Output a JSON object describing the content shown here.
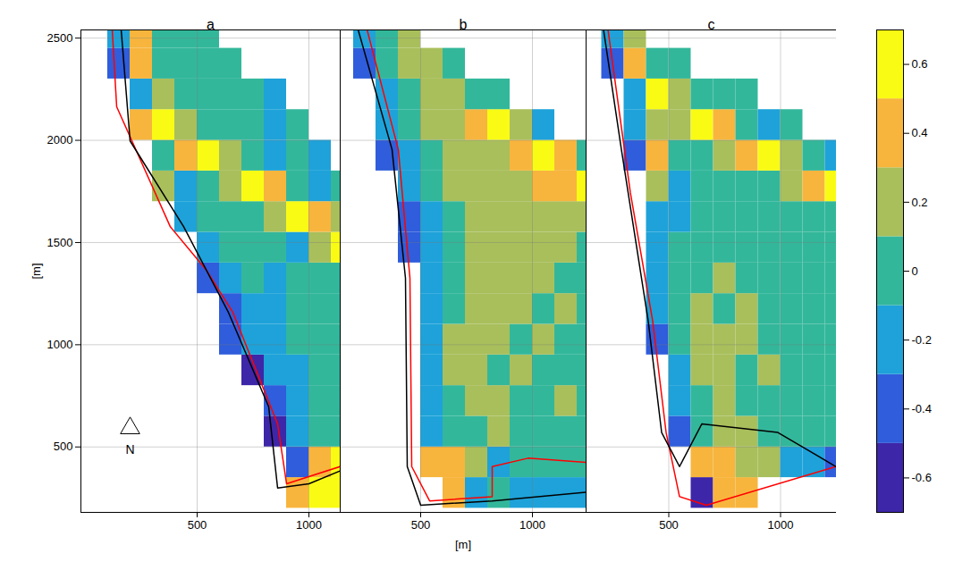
{
  "chart_data": [
    {
      "type": "heatmap",
      "title": "a",
      "ylabel": "[m]",
      "xlim": [
        -20,
        1140
      ],
      "xticks": [
        500,
        1000
      ],
      "ylim": [
        180,
        2540
      ],
      "yticks": [
        500,
        1000,
        1500,
        2000,
        2500
      ],
      "grid": true,
      "tick_labels": true,
      "cells": {
        "x0": 0,
        "dx": 100,
        "y0": 200,
        "dy": 150,
        "values": [
          [
            null,
            null,
            null,
            null,
            null,
            null,
            null,
            null,
            null,
            0.4,
            0.6,
            0.6
          ],
          [
            null,
            null,
            null,
            null,
            null,
            null,
            null,
            null,
            null,
            -0.4,
            0.4,
            0.6
          ],
          [
            null,
            null,
            null,
            null,
            null,
            null,
            null,
            null,
            -0.6,
            -0.2,
            0,
            0
          ],
          [
            null,
            null,
            null,
            null,
            null,
            null,
            null,
            null,
            -0.4,
            -0.2,
            0,
            0
          ],
          [
            null,
            null,
            null,
            null,
            null,
            null,
            null,
            -0.6,
            -0.2,
            -0.2,
            0,
            0
          ],
          [
            null,
            null,
            null,
            null,
            null,
            null,
            -0.4,
            -0.2,
            -0.2,
            0,
            0,
            0
          ],
          [
            null,
            null,
            null,
            null,
            null,
            null,
            -0.4,
            -0.2,
            -0.2,
            0,
            0,
            0
          ],
          [
            null,
            null,
            null,
            null,
            null,
            -0.4,
            -0.2,
            0,
            -0.2,
            0,
            0,
            0
          ],
          [
            null,
            null,
            null,
            null,
            null,
            -0.2,
            0,
            0,
            0,
            -0.2,
            0.2,
            0.6
          ],
          [
            null,
            null,
            null,
            null,
            -0.2,
            0,
            0,
            0,
            0.2,
            0.6,
            0.4,
            0.2
          ],
          [
            null,
            null,
            null,
            0.2,
            -0.2,
            0,
            0.2,
            0.6,
            0.4,
            0,
            -0.2,
            0
          ],
          [
            null,
            null,
            null,
            0,
            0.4,
            0.6,
            0.2,
            0,
            -0.2,
            0,
            -0.2,
            null
          ],
          [
            null,
            null,
            0.4,
            0.6,
            0.2,
            0,
            0,
            0,
            -0.2,
            0,
            null,
            null
          ],
          [
            null,
            null,
            -0.2,
            0.2,
            0,
            0,
            0,
            0,
            -0.2,
            null,
            null,
            null
          ],
          [
            null,
            -0.4,
            0.4,
            0,
            0,
            0,
            0,
            null,
            null,
            null,
            null,
            null
          ],
          [
            null,
            -0.2,
            0.4,
            0,
            0,
            0,
            null,
            null,
            null,
            null,
            null,
            null
          ]
        ]
      },
      "lines": [
        {
          "color": "red",
          "x": [
            120,
            140,
            380,
            540,
            660,
            860,
            900,
            1140
          ],
          "y": [
            2542,
            2164,
            1577,
            1367,
            1158,
            613,
            320,
            404
          ]
        },
        {
          "color": "black",
          "x": [
            160,
            200,
            440,
            640,
            820,
            860,
            1000,
            1140
          ],
          "y": [
            2542,
            1997,
            1577,
            1158,
            697,
            299,
            320,
            383
          ]
        }
      ],
      "annotations": [
        {
          "text": "N",
          "x": 200,
          "y": 487
        }
      ]
    },
    {
      "type": "heatmap",
      "title": "b",
      "xlabel": "[m]",
      "xlim": [
        140,
        1240
      ],
      "xticks": [
        500,
        1000
      ],
      "ylim": [
        180,
        2540
      ],
      "yticks": [
        500,
        1000,
        1500,
        2000,
        2500
      ],
      "grid": true,
      "tick_labels": "x",
      "cells": {
        "x0": 100,
        "dx": 100,
        "y0": 200,
        "dy": 150,
        "values": [
          [
            null,
            null,
            null,
            null,
            null,
            0.4,
            -0.2,
            0,
            -0.2,
            -0.2,
            -0.2,
            -0.2
          ],
          [
            null,
            null,
            null,
            null,
            0.4,
            0.4,
            0.2,
            -0.2,
            0,
            0,
            0,
            0
          ],
          [
            null,
            null,
            null,
            null,
            -0.2,
            0,
            0,
            0.2,
            0,
            0,
            0,
            0
          ],
          [
            null,
            null,
            null,
            null,
            -0.2,
            0,
            0.2,
            0.2,
            0,
            0,
            0.2,
            0
          ],
          [
            null,
            null,
            null,
            null,
            -0.2,
            0.2,
            0.2,
            0,
            0.2,
            0,
            0,
            0
          ],
          [
            null,
            null,
            null,
            null,
            -0.2,
            0.2,
            0.2,
            0.2,
            0,
            0.2,
            0,
            0
          ],
          [
            null,
            null,
            null,
            null,
            -0.2,
            0,
            0.2,
            0.2,
            0.2,
            0,
            0.2,
            0
          ],
          [
            null,
            null,
            null,
            null,
            -0.2,
            0,
            0.2,
            0.2,
            0.2,
            0.2,
            0,
            0
          ],
          [
            null,
            null,
            null,
            -0.4,
            -0.2,
            0,
            0.2,
            0.2,
            0.2,
            0.2,
            0.2,
            0
          ],
          [
            null,
            null,
            null,
            -0.4,
            -0.2,
            0,
            0.2,
            0.2,
            0.2,
            0.2,
            0.2,
            0.2
          ],
          [
            null,
            null,
            null,
            -0.2,
            0,
            0.2,
            0.2,
            0.2,
            0.2,
            0.4,
            0.4,
            0.6
          ],
          [
            null,
            null,
            -0.4,
            -0.2,
            0,
            0.2,
            0.2,
            0.2,
            0.4,
            0.6,
            0.4,
            0
          ],
          [
            null,
            null,
            -0.2,
            0,
            0.2,
            0.2,
            0.4,
            0.6,
            0.2,
            -0.2,
            null,
            null
          ],
          [
            null,
            null,
            -0.2,
            0,
            0.2,
            0.2,
            0,
            0,
            null,
            null,
            null,
            null
          ],
          [
            null,
            -0.4,
            0,
            0.2,
            0.2,
            0,
            null,
            null,
            null,
            null,
            null,
            null
          ],
          [
            null,
            -0.2,
            0,
            0.2,
            null,
            null,
            null,
            null,
            null,
            null,
            null,
            null
          ]
        ]
      },
      "lines": [
        {
          "color": "red",
          "x": [
            260,
            400,
            452,
            460,
            540,
            820,
            820,
            980,
            1240
          ],
          "y": [
            2542,
            1955,
            1326,
            404,
            236,
            257,
            404,
            445,
            425
          ]
        },
        {
          "color": "black",
          "x": [
            220,
            372,
            432,
            440,
            500,
            820,
            1240
          ],
          "y": [
            2542,
            1955,
            1326,
            404,
            215,
            236,
            278
          ]
        }
      ]
    },
    {
      "type": "heatmap",
      "title": "c",
      "xlim": [
        130,
        1250
      ],
      "xticks": [
        500,
        1000
      ],
      "ylim": [
        180,
        2540
      ],
      "yticks": [
        500,
        1000,
        1500,
        2000,
        2500
      ],
      "grid": true,
      "tick_labels": "x",
      "cells": {
        "x0": 100,
        "dx": 100,
        "y0": 200,
        "dy": 150,
        "values": [
          [
            null,
            null,
            null,
            null,
            null,
            -0.6,
            0.4,
            0.4,
            null,
            null,
            null,
            null
          ],
          [
            null,
            null,
            null,
            null,
            null,
            0.4,
            0.4,
            0.2,
            0.2,
            -0.2,
            -0.2,
            -0.4
          ],
          [
            null,
            null,
            null,
            null,
            -0.4,
            0,
            0.2,
            0.2,
            0,
            0,
            0,
            0
          ],
          [
            null,
            null,
            null,
            null,
            -0.2,
            0,
            0.2,
            0,
            0,
            0,
            0,
            0
          ],
          [
            null,
            null,
            null,
            null,
            -0.2,
            0.2,
            0.2,
            0,
            0.2,
            0,
            0,
            0
          ],
          [
            null,
            null,
            null,
            -0.4,
            0,
            0.2,
            0.2,
            0.2,
            0,
            0,
            0,
            0
          ],
          [
            null,
            null,
            null,
            -0.2,
            0,
            0.2,
            0,
            0.2,
            0,
            0,
            0,
            0
          ],
          [
            null,
            null,
            null,
            -0.2,
            0,
            0,
            0.2,
            0,
            0,
            0,
            0,
            0
          ],
          [
            null,
            null,
            null,
            -0.2,
            0,
            0,
            0,
            0,
            0,
            0,
            0,
            0
          ],
          [
            null,
            null,
            null,
            -0.2,
            -0.2,
            0,
            0,
            0,
            0,
            0,
            0,
            0
          ],
          [
            null,
            null,
            null,
            0.2,
            -0.2,
            0,
            0,
            0,
            0,
            0.2,
            0.4,
            0.6
          ],
          [
            null,
            null,
            -0.4,
            0.4,
            0,
            0,
            0.2,
            0.4,
            0.6,
            0.2,
            0,
            -0.2
          ],
          [
            null,
            null,
            -0.2,
            0.2,
            0.2,
            0.6,
            0.4,
            0,
            -0.2,
            0,
            null,
            null
          ],
          [
            null,
            null,
            -0.2,
            0.6,
            0.2,
            0,
            0,
            0,
            null,
            null,
            null,
            null
          ],
          [
            null,
            -0.4,
            0.4,
            0,
            0,
            null,
            null,
            null,
            null,
            null,
            null,
            null
          ],
          [
            null,
            -0.2,
            0.2,
            null,
            null,
            null,
            null,
            null,
            null,
            null,
            null,
            null
          ]
        ]
      },
      "lines": [
        {
          "color": "red",
          "x": [
            228,
            328,
            428,
            488,
            548,
            668,
            1248
          ],
          "y": [
            2542,
            1745,
            1116,
            571,
            257,
            215,
            404
          ]
        },
        {
          "color": "black",
          "x": [
            208,
            288,
            408,
            468,
            548,
            648,
            988,
            1248
          ],
          "y": [
            2542,
            1955,
            1116,
            571,
            404,
            613,
            571,
            404
          ]
        }
      ]
    }
  ],
  "colorbar": {
    "range": [
      -0.7,
      0.7
    ],
    "ticks": [
      -0.6,
      -0.4,
      -0.2,
      0,
      0.2,
      0.4,
      0.6
    ],
    "colors": [
      "#3e26a8",
      "#2f5ddb",
      "#1ea2d9",
      "#33b79b",
      "#a9bf5c",
      "#f7b53e",
      "#f9fb15"
    ]
  }
}
